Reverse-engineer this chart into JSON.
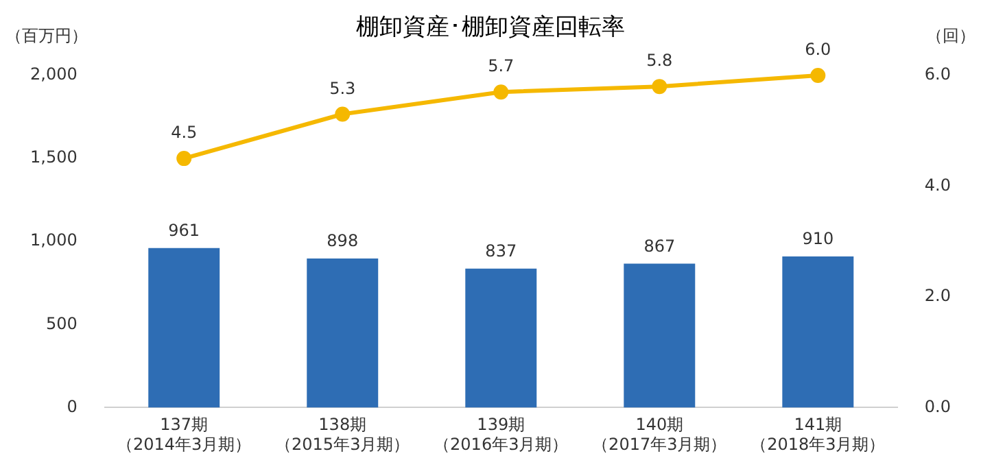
{
  "chart_data": {
    "type": "bar",
    "title": "棚卸資産･棚卸資産回転率",
    "ylabel": "（百万円）",
    "y2label": "（回）",
    "categories": [
      "137期（2014年3月期）",
      "138期（2015年3月期）",
      "139期（2016年3月期）",
      "140期（2017年3月期）",
      "141期（2018年3月期）"
    ],
    "series": [
      {
        "color": "#2e6db4",
        "values": [
          961,
          898,
          837,
          867,
          910
        ]
      },
      {
        "type": "line",
        "axis": "y2",
        "color": "#f5b800",
        "marker": "circle",
        "values": [
          4.5,
          5.3,
          5.7,
          5.8,
          6.0
        ],
        "value_labels": [
          "4.5",
          "5.3",
          "5.7",
          "5.8",
          "6.0"
        ]
      }
    ],
    "data_labels": true,
    "ylim": [
      0,
      2000
    ],
    "yticks": [
      {
        "value": 0,
        "label": "0"
      },
      {
        "value": 500,
        "label": "500"
      },
      {
        "value": 1000,
        "label": "1,000"
      },
      {
        "value": 1500,
        "label": "1,500"
      },
      {
        "value": 2000,
        "label": "2,000"
      }
    ],
    "y2lim": [
      0,
      6
    ],
    "y2ticks": [
      {
        "value": 0,
        "label": "0.0"
      },
      {
        "value": 2,
        "label": "2.0"
      },
      {
        "value": 4,
        "label": "4.0"
      },
      {
        "value": 6,
        "label": "6.0"
      }
    ],
    "grid": false,
    "legend": false
  }
}
